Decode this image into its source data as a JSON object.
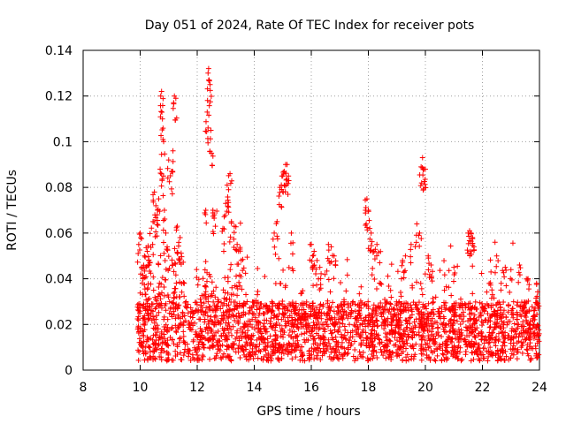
{
  "chart_data": {
    "type": "scatter",
    "title": "Day 051 of 2024, Rate Of TEC Index for receiver pots",
    "xlabel": "GPS time / hours",
    "ylabel": "ROTI / TECUs",
    "xlim": [
      8,
      24
    ],
    "ylim": [
      0,
      0.14
    ],
    "xticks": [
      8,
      10,
      12,
      14,
      16,
      18,
      20,
      22,
      24
    ],
    "yticks": [
      0,
      0.02,
      0.04,
      0.06,
      0.08,
      0.1,
      0.12,
      0.14
    ],
    "xtick_labels": [
      "8",
      "10",
      "12",
      "14",
      "16",
      "18",
      "20",
      "22",
      "24"
    ],
    "ytick_labels": [
      "0",
      "0.02",
      "0.04",
      "0.06",
      "0.08",
      "0.1",
      "0.12",
      "0.14"
    ],
    "grid": true,
    "marker": "+",
    "color": "#ff0000",
    "series": [
      {
        "name": "ROTI",
        "description_of_dense_region": "Dense band of points between 10 h and 24 h, mostly 0.003–0.035 TECU",
        "x": [
          9.95,
          10.0,
          10.05,
          10.1,
          10.15,
          10.2,
          10.25,
          10.3,
          10.45,
          10.5,
          10.55,
          10.6,
          10.65,
          10.7,
          10.72,
          10.75,
          10.78,
          10.8,
          10.82,
          10.85,
          10.9,
          11.0,
          11.1,
          11.15,
          11.2,
          11.25,
          11.3,
          11.4,
          12.3,
          12.35,
          12.38,
          12.4,
          12.42,
          12.45,
          12.48,
          12.5,
          12.55,
          12.6,
          12.9,
          13.0,
          13.05,
          13.1,
          13.15,
          13.2,
          13.3,
          13.4,
          13.5,
          14.7,
          14.8,
          14.9,
          14.95,
          15.0,
          15.05,
          15.1,
          15.15,
          15.2,
          15.3,
          16.0,
          16.05,
          16.1,
          16.2,
          16.3,
          16.6,
          16.7,
          16.8,
          17.9,
          17.95,
          18.0,
          18.05,
          18.1,
          18.2,
          18.3,
          18.4,
          19.2,
          19.3,
          19.5,
          19.7,
          19.8,
          19.85,
          19.9,
          19.95,
          20.0,
          20.1,
          20.2,
          21.0,
          21.5,
          21.55,
          21.6,
          21.65,
          21.7,
          22.3,
          22.5,
          22.8,
          23.0,
          23.3,
          23.6,
          23.9
        ],
        "y": [
          0.055,
          0.06,
          0.045,
          0.04,
          0.05,
          0.045,
          0.052,
          0.048,
          0.065,
          0.078,
          0.072,
          0.068,
          0.075,
          0.088,
          0.12,
          0.122,
          0.11,
          0.101,
          0.085,
          0.07,
          0.06,
          0.092,
          0.087,
          0.096,
          0.12,
          0.119,
          0.063,
          0.058,
          0.07,
          0.113,
          0.106,
          0.132,
          0.127,
          0.125,
          0.105,
          0.095,
          0.07,
          0.068,
          0.062,
          0.073,
          0.081,
          0.079,
          0.086,
          0.065,
          0.063,
          0.055,
          0.053,
          0.06,
          0.065,
          0.08,
          0.081,
          0.085,
          0.087,
          0.09,
          0.09,
          0.085,
          0.06,
          0.055,
          0.05,
          0.052,
          0.048,
          0.045,
          0.055,
          0.054,
          0.05,
          0.07,
          0.075,
          0.07,
          0.062,
          0.06,
          0.052,
          0.055,
          0.047,
          0.048,
          0.05,
          0.055,
          0.064,
          0.06,
          0.089,
          0.093,
          0.088,
          0.088,
          0.05,
          0.046,
          0.045,
          0.06,
          0.061,
          0.06,
          0.058,
          0.054,
          0.043,
          0.05,
          0.045,
          0.044,
          0.046,
          0.04,
          0.038
        ]
      }
    ]
  }
}
